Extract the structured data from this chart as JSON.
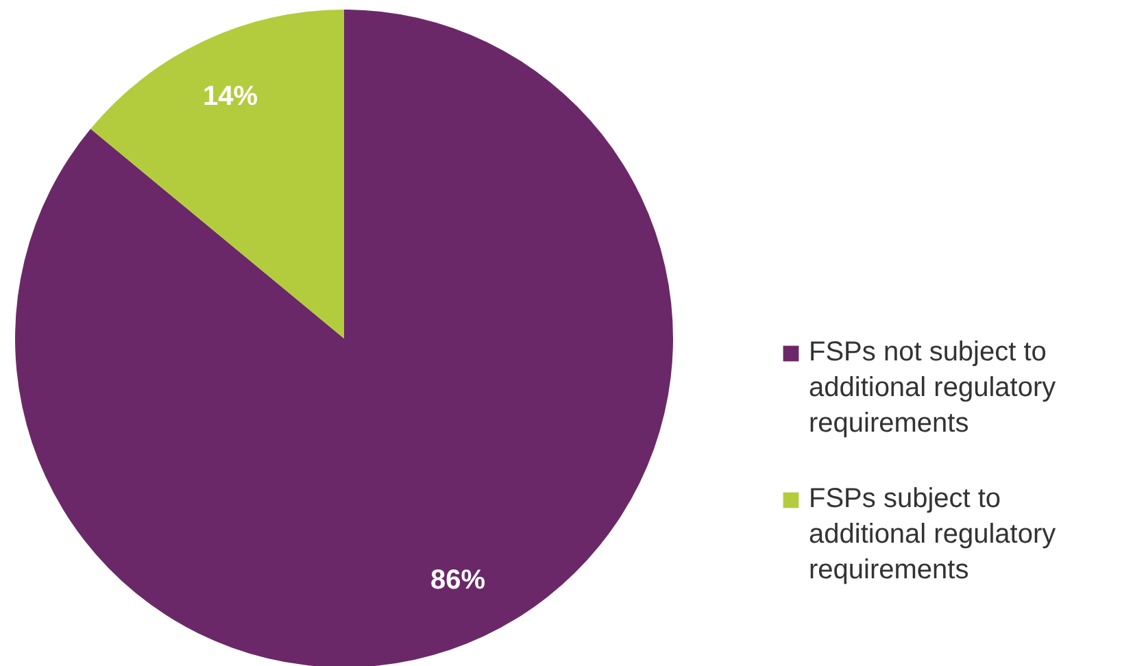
{
  "chart_data": {
    "type": "pie",
    "categories": [
      "FSPs not subject to additional regulatory requirements",
      "FSPs subject to additional regulatory requirements"
    ],
    "values": [
      86,
      14
    ],
    "colors": [
      "#6b2868",
      "#b3cc3d"
    ],
    "value_labels": [
      "86%",
      "14%"
    ],
    "legend": "right"
  }
}
